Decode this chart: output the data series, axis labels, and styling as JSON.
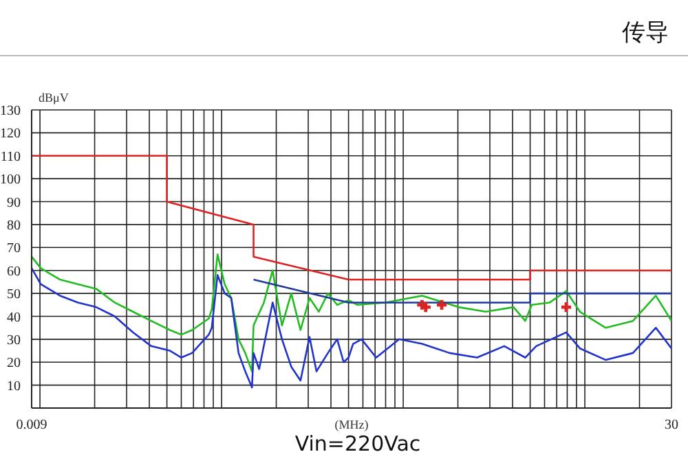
{
  "chart_data": {
    "type": "line",
    "title": "传导",
    "xlabel": "(MHz)",
    "ylabel": "dBμV",
    "annotations": [
      "Vin=220Vac"
    ],
    "log": "x",
    "grid": true,
    "line_style": "solid",
    "xlim": [
      0.009,
      30
    ],
    "xticks": [
      0.009,
      {
        "value": 0.01,
        "label": null
      },
      {
        "value": 0.02,
        "label": null
      },
      {
        "value": 0.03,
        "label": null
      },
      {
        "value": 0.04,
        "label": null
      },
      {
        "value": 0.05,
        "label": null
      },
      {
        "value": 0.06,
        "label": null
      },
      {
        "value": 0.07,
        "label": null
      },
      {
        "value": 0.08,
        "label": null
      },
      {
        "value": 0.09,
        "label": null
      },
      {
        "value": 0.1,
        "label": null
      },
      {
        "value": 0.2,
        "label": null
      },
      {
        "value": 0.3,
        "label": null
      },
      {
        "value": 0.4,
        "label": null
      },
      {
        "value": 0.5,
        "label": null
      },
      {
        "value": 0.6,
        "label": null
      },
      {
        "value": 0.7,
        "label": null
      },
      {
        "value": 0.8,
        "label": null
      },
      {
        "value": 0.9,
        "label": null
      },
      {
        "value": 1,
        "label": null
      },
      {
        "value": 2,
        "label": null
      },
      {
        "value": 3,
        "label": null
      },
      {
        "value": 4,
        "label": null
      },
      {
        "value": 5,
        "label": null
      },
      {
        "value": 6,
        "label": null
      },
      {
        "value": 7,
        "label": null
      },
      {
        "value": 8,
        "label": null
      },
      {
        "value": 9,
        "label": null
      },
      {
        "value": 10,
        "label": null
      },
      {
        "value": 20,
        "label": null
      },
      30
    ],
    "ylim": [
      0,
      130
    ],
    "yticks": [
      {
        "value": 0,
        "label": null
      },
      10,
      20,
      30,
      40,
      50,
      60,
      70,
      80,
      90,
      100,
      110,
      120,
      130
    ],
    "series": [
      {
        "type": "line",
        "color": "#22bb22",
        "x": [
          0.009,
          0.0101,
          0.0129,
          0.0162,
          0.0204,
          0.0258,
          0.0325,
          0.041,
          0.052,
          0.06,
          0.0688,
          0.085,
          0.0883,
          0.095,
          0.104,
          0.113,
          0.124,
          0.135,
          0.147,
          0.15,
          0.171,
          0.191,
          0.215,
          0.242,
          0.272,
          0.305,
          0.343,
          0.385,
          0.433,
          0.5,
          0.56,
          0.797,
          1.27,
          2.02,
          2.85,
          4.05,
          4.7,
          5.1,
          6.4,
          7.9,
          9.4,
          13,
          18.4,
          24.6,
          30
        ],
        "values": [
          66,
          61,
          56,
          54,
          52,
          46,
          42,
          38,
          34,
          32,
          34,
          39,
          43,
          67,
          54,
          48,
          30,
          24,
          16,
          36,
          46,
          60,
          36,
          50,
          34,
          48,
          42,
          50,
          45,
          47,
          45,
          46,
          49,
          44,
          42,
          44,
          38,
          45,
          46,
          51,
          42,
          35,
          38,
          49,
          38
        ]
      },
      {
        "type": "line",
        "color": "#2233cc",
        "x": [
          0.009,
          0.0101,
          0.0129,
          0.0162,
          0.0204,
          0.0258,
          0.0325,
          0.041,
          0.052,
          0.06,
          0.0688,
          0.085,
          0.0883,
          0.095,
          0.104,
          0.113,
          0.124,
          0.135,
          0.147,
          0.15,
          0.161,
          0.191,
          0.215,
          0.242,
          0.272,
          0.305,
          0.333,
          0.385,
          0.433,
          0.47,
          0.5,
          0.53,
          0.59,
          0.71,
          0.95,
          1.27,
          1.8,
          2.55,
          3.6,
          4.7,
          5.4,
          7.9,
          9.4,
          13,
          18.4,
          24.6,
          30
        ],
        "values": [
          61,
          54,
          49,
          46,
          44,
          40,
          33,
          27,
          25,
          22,
          24,
          32,
          35,
          58,
          50,
          48,
          24,
          16,
          9,
          24,
          17,
          46,
          30,
          18,
          12,
          31,
          16,
          24,
          30,
          20,
          22,
          28,
          30,
          22,
          30,
          28,
          24,
          22,
          27,
          22,
          27,
          33,
          26,
          21,
          24,
          35,
          26
        ]
      },
      {
        "type": "line",
        "color": "#dd2222",
        "x": [
          0.009,
          0.05,
          0.05,
          0.15,
          0.15,
          0.5,
          5,
          5,
          30
        ],
        "values": [
          110,
          110,
          90,
          80,
          66,
          56,
          56,
          60,
          60
        ]
      },
      {
        "type": "line",
        "color": "#1f3a99",
        "x": [
          0.15,
          0.5,
          5,
          5,
          30
        ],
        "values": [
          56,
          46,
          46,
          50,
          50
        ]
      },
      {
        "type": "scatter",
        "color": "#dd2222",
        "marker": "cross",
        "x": [
          1.27,
          1.33,
          1.63,
          7.9
        ],
        "values": [
          45,
          44,
          45,
          44
        ]
      }
    ]
  }
}
